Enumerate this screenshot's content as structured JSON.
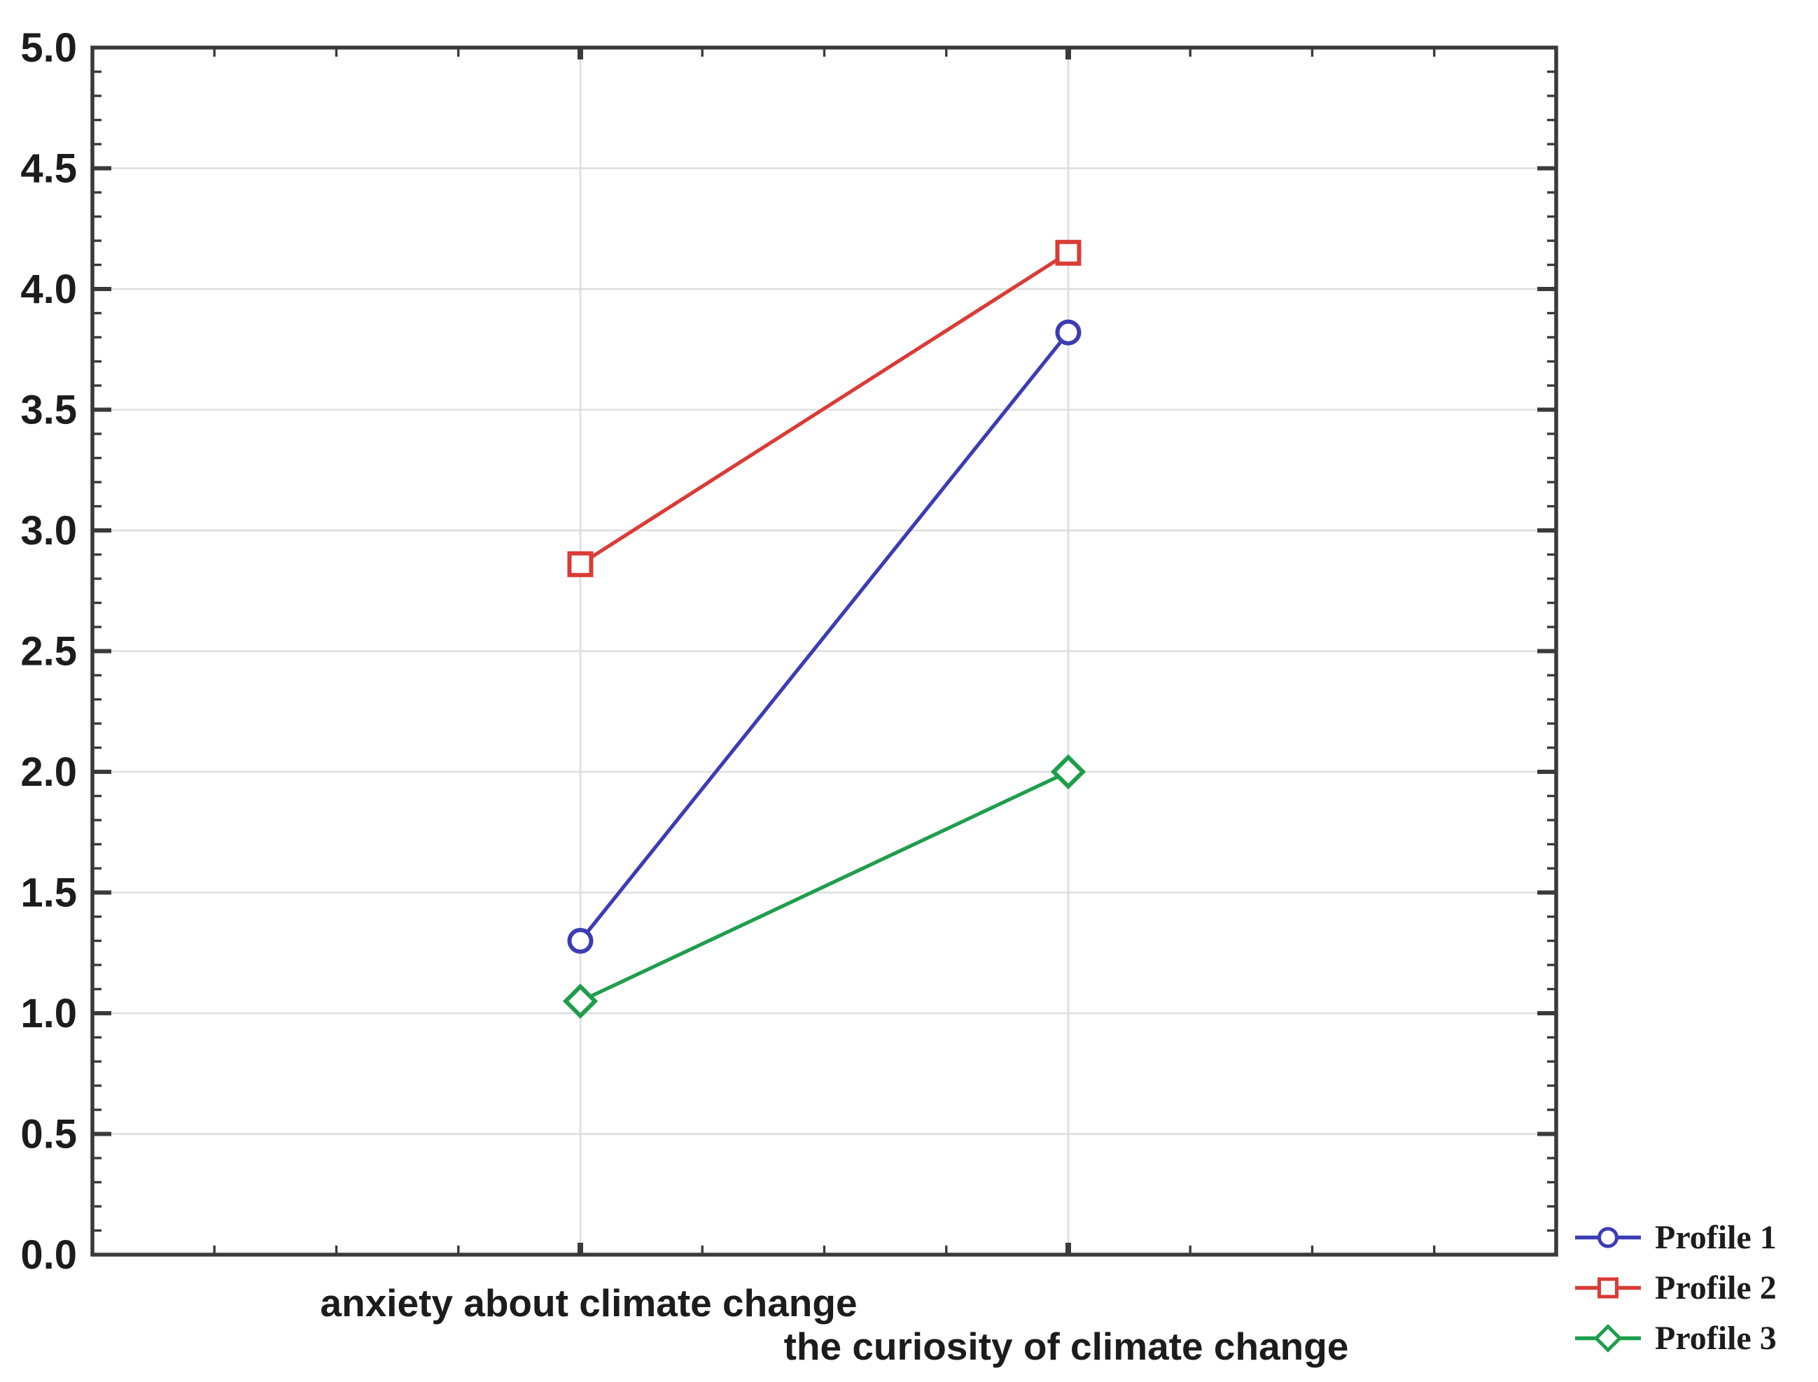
{
  "chart_data": {
    "type": "line",
    "title": "",
    "xlabel": "",
    "ylabel": "",
    "categories": [
      "anxiety about climate change",
      "the curiosity of climate change"
    ],
    "series": [
      {
        "name": "Profile 1",
        "marker": "circle",
        "color": "#3c3cb4",
        "values": [
          1.3,
          3.82
        ]
      },
      {
        "name": "Profile 2",
        "marker": "square",
        "color": "#da3b36",
        "values": [
          2.86,
          4.15
        ]
      },
      {
        "name": "Profile 3",
        "marker": "diamond",
        "color": "#1e9e4b",
        "values": [
          1.05,
          2.0
        ]
      }
    ],
    "ylim": [
      0.0,
      5.0
    ],
    "y_major_step": 0.5,
    "y_minor_step": 0.1,
    "y_tick_labels": [
      "0.0",
      "0.5",
      "1.0",
      "1.5",
      "2.0",
      "2.5",
      "3.0",
      "3.5",
      "4.0",
      "4.5",
      "5.0"
    ],
    "grid": true,
    "vertical_gridlines_at_categories": true,
    "legend_position": "outside-bottom-right",
    "marker_fill": "open-white"
  },
  "colors": {
    "axis": "#3a3a3a",
    "grid": "#dedede",
    "text": "#1c1c1c",
    "background": "#ffffff"
  }
}
